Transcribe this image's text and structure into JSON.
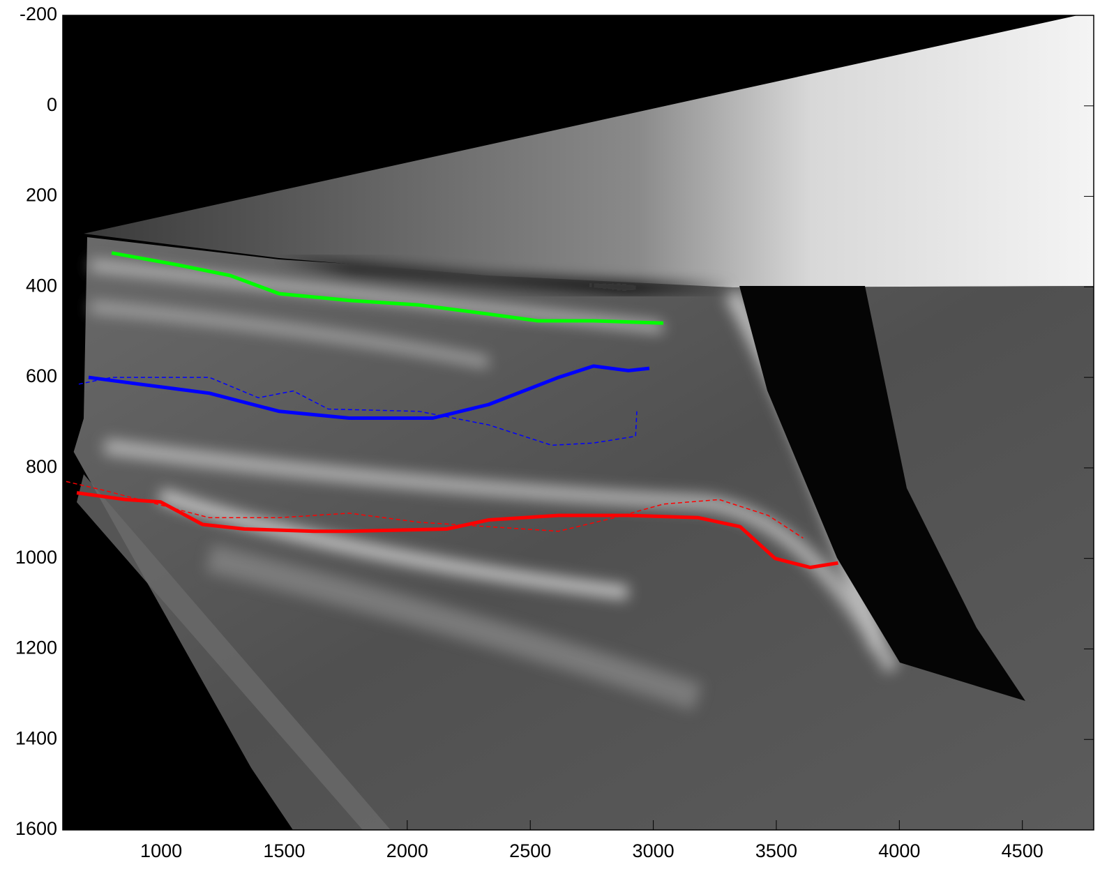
{
  "chart_data": {
    "type": "line",
    "xlim": [
      600,
      4790
    ],
    "ylim": [
      -200,
      1600
    ],
    "y_reversed": true,
    "xticks": [
      1000,
      1500,
      2000,
      2500,
      3000,
      3500,
      4000,
      4500
    ],
    "yticks": [
      -200,
      0,
      200,
      400,
      600,
      800,
      1000,
      1200,
      1400,
      1600
    ],
    "grid": false,
    "series": [
      {
        "color": "#00ff00",
        "style": "solid",
        "x": [
          799,
          1054,
          1281,
          1480,
          1764,
          2048,
          2331,
          2530,
          2757,
          3041
        ],
        "values": [
          325,
          350,
          375,
          415,
          430,
          440,
          460,
          475,
          475,
          480
        ]
      },
      {
        "color": "#0000ff",
        "style": "solid",
        "x": [
          705,
          912,
          1196,
          1480,
          1764,
          2104,
          2331,
          2473,
          2615,
          2757,
          2899,
          2984
        ],
        "values": [
          600,
          615,
          635,
          675,
          690,
          690,
          660,
          630,
          600,
          575,
          585,
          580
        ]
      },
      {
        "color": "#0000ff",
        "style": "dashed",
        "x": [
          665,
          799,
          1196,
          1395,
          1537,
          1679,
          2048,
          2331,
          2587,
          2757,
          2928,
          2933
        ],
        "values": [
          615,
          600,
          600,
          645,
          630,
          670,
          675,
          705,
          750,
          745,
          730,
          675
        ]
      },
      {
        "color": "#ff0000",
        "style": "solid",
        "x": [
          657,
          855,
          997,
          1168,
          1338,
          1622,
          1764,
          2161,
          2331,
          2615,
          2899,
          3183,
          3353,
          3495,
          3637,
          3751
        ],
        "values": [
          855,
          870,
          875,
          925,
          935,
          940,
          940,
          935,
          915,
          905,
          905,
          910,
          930,
          1000,
          1020,
          1010
        ]
      },
      {
        "color": "#ff0000",
        "style": "dashed",
        "x": [
          614,
          770,
          1054,
          1196,
          1480,
          1764,
          2048,
          2331,
          2615,
          2842,
          3041,
          3268,
          3467,
          3609
        ],
        "values": [
          830,
          850,
          890,
          910,
          910,
          900,
          920,
          930,
          940,
          910,
          880,
          870,
          905,
          955
        ]
      }
    ]
  }
}
